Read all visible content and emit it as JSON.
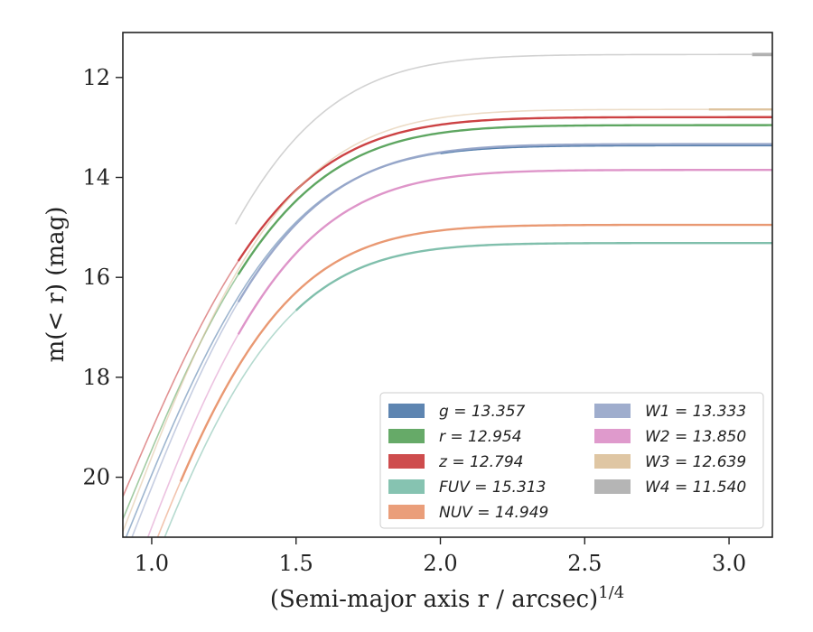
{
  "chart_data": {
    "type": "line",
    "title": "",
    "xlabel": "(Semi-major axis r / arcsec)",
    "xlabel_sup": "1/4",
    "ylabel": "m(< r) (mag)",
    "xlim": [
      0.9,
      3.15
    ],
    "ylim": [
      21.2,
      11.1
    ],
    "y_inverted": true,
    "x_ticks": [
      1.0,
      1.5,
      2.0,
      2.5,
      3.0
    ],
    "x_tick_labels": [
      "1.0",
      "1.5",
      "2.0",
      "2.5",
      "3.0"
    ],
    "y_ticks": [
      12,
      14,
      16,
      18,
      20
    ],
    "y_tick_labels": [
      "12",
      "14",
      "16",
      "18",
      "20"
    ],
    "grid": false,
    "legend_position": "lower-right",
    "series": [
      {
        "name": "g",
        "label": "g = 13.357",
        "color": "#4c78a8",
        "x0": 0.9,
        "x_end": 3.15,
        "x_fade": 2.0,
        "inf": 13.357,
        "k": 2.6,
        "y_at_1": 19.95
      },
      {
        "name": "r",
        "label": "r = 12.954",
        "color": "#55a158",
        "x0": 0.9,
        "x_end": 3.15,
        "x_fade": 1.3,
        "inf": 12.954,
        "k": 2.6,
        "y_at_1": 19.45
      },
      {
        "name": "z",
        "label": "z = 12.794",
        "color": "#c9383a",
        "x0": 0.9,
        "x_end": 3.15,
        "x_fade": 1.3,
        "inf": 12.794,
        "k": 2.6,
        "y_at_1": 19.05
      },
      {
        "name": "FUV",
        "label": "FUV = 15.313",
        "color": "#79bca8",
        "x0": 1.0,
        "x_end": 3.15,
        "x_fade": 1.5,
        "inf": 15.313,
        "k": 2.9,
        "y_at_1": 21.85
      },
      {
        "name": "NUV",
        "label": "NUV = 14.949",
        "color": "#e8946c",
        "x0": 1.0,
        "x_end": 3.15,
        "x_fade": 1.1,
        "inf": 14.949,
        "k": 2.9,
        "y_at_1": 21.5
      },
      {
        "name": "W1",
        "label": "W1 = 13.333",
        "color": "#95a4c8",
        "x0": 0.9,
        "x_end": 3.15,
        "x_fade": 1.3,
        "inf": 13.333,
        "k": 2.6,
        "y_at_1": 20.2
      },
      {
        "name": "W2",
        "label": "W2 = 13.850",
        "color": "#dc8fc6",
        "x0": 0.9,
        "x_end": 3.15,
        "x_fade": 1.3,
        "inf": 13.85,
        "k": 2.6,
        "y_at_1": 21.0
      },
      {
        "name": "W3",
        "label": "W3 = 12.639",
        "color": "#dcc099",
        "x0": 0.9,
        "x_end": 3.15,
        "x_fade": 2.93,
        "inf": 12.639,
        "k": 2.6,
        "y_at_1": 19.6
      },
      {
        "name": "W4",
        "label": "W4 = 11.540",
        "color": "#adadad",
        "x0": 1.29,
        "x_end": 3.15,
        "x_fade": 3.08,
        "inf": 11.54,
        "k": 2.6,
        "y_at_1": 18.7
      }
    ]
  }
}
